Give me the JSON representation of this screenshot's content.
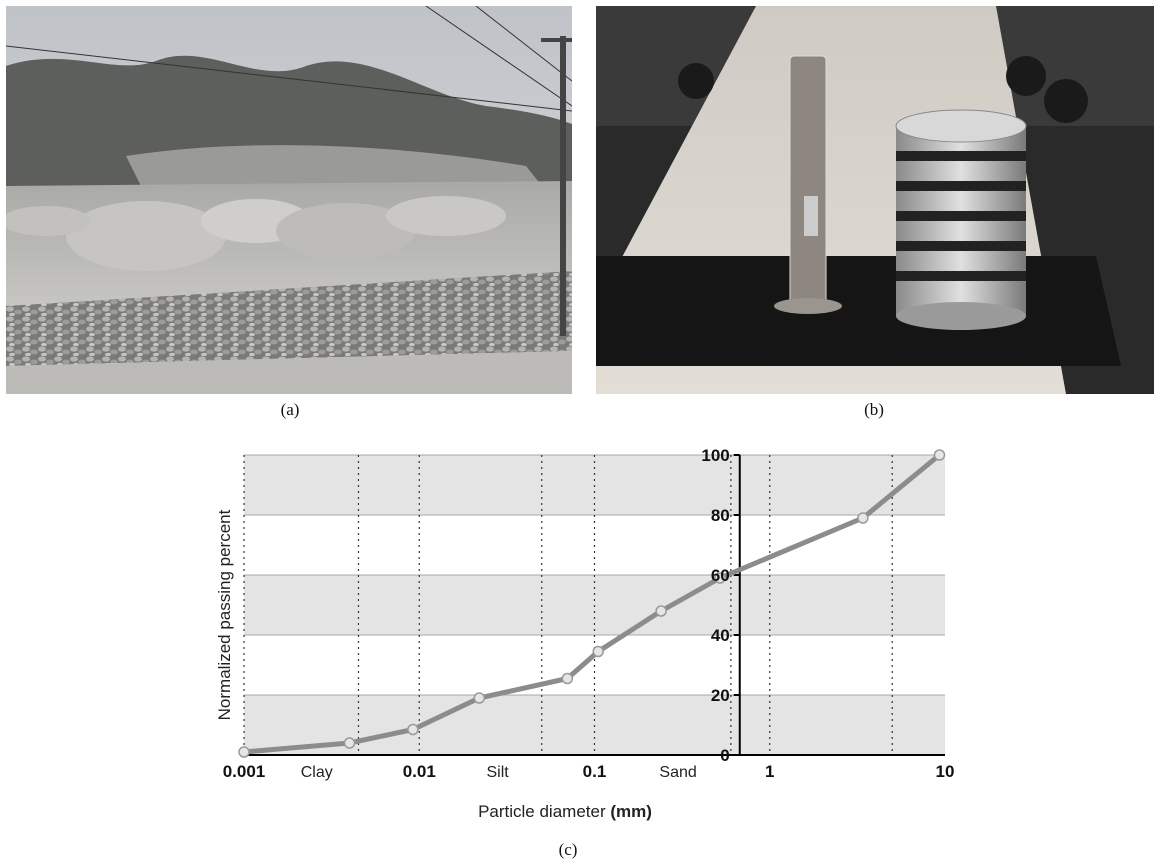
{
  "captions": {
    "a": "(a)",
    "b": "(b)",
    "c": "(c)"
  },
  "photos": {
    "a": {
      "subject": "landfill-mounds-gabion-wall"
    },
    "b": {
      "subject": "hydrometer-cylinder-and-sieve-stack"
    }
  },
  "colors": {
    "band": "#e4e4e4",
    "line": "#8c8c8c",
    "marker_fill": "#e6e6e6",
    "axis": "#000000"
  },
  "chart_data": {
    "type": "line",
    "title": "",
    "xlabel": "Particle diameter",
    "xlabel_unit": "(mm)",
    "ylabel": "Normalized passing percent",
    "xscale": "log",
    "xlim": [
      0.001,
      10
    ],
    "ylim": [
      0,
      100
    ],
    "x_ticks": [
      "0.001",
      "0.01",
      "0.1",
      "1",
      "10"
    ],
    "y_ticks": [
      "0",
      "20",
      "40",
      "60",
      "80",
      "100"
    ],
    "grid": true,
    "zones": [
      {
        "label": "Clay",
        "x_center": 0.0026
      },
      {
        "label": "Silt",
        "x_center": 0.028
      },
      {
        "label": "Sand",
        "x_center": 0.3
      }
    ],
    "dashed_lines_x": [
      0.001,
      0.0045,
      0.01,
      0.05,
      0.1,
      0.6,
      1,
      5
    ],
    "series": [
      {
        "x": [
          0.001,
          0.004,
          0.0092,
          0.022,
          0.07,
          0.105,
          0.24,
          0.52,
          3.4,
          9.3
        ],
        "y": [
          1,
          4,
          8.5,
          19,
          25.5,
          34.5,
          48,
          59,
          79,
          100
        ]
      }
    ]
  }
}
